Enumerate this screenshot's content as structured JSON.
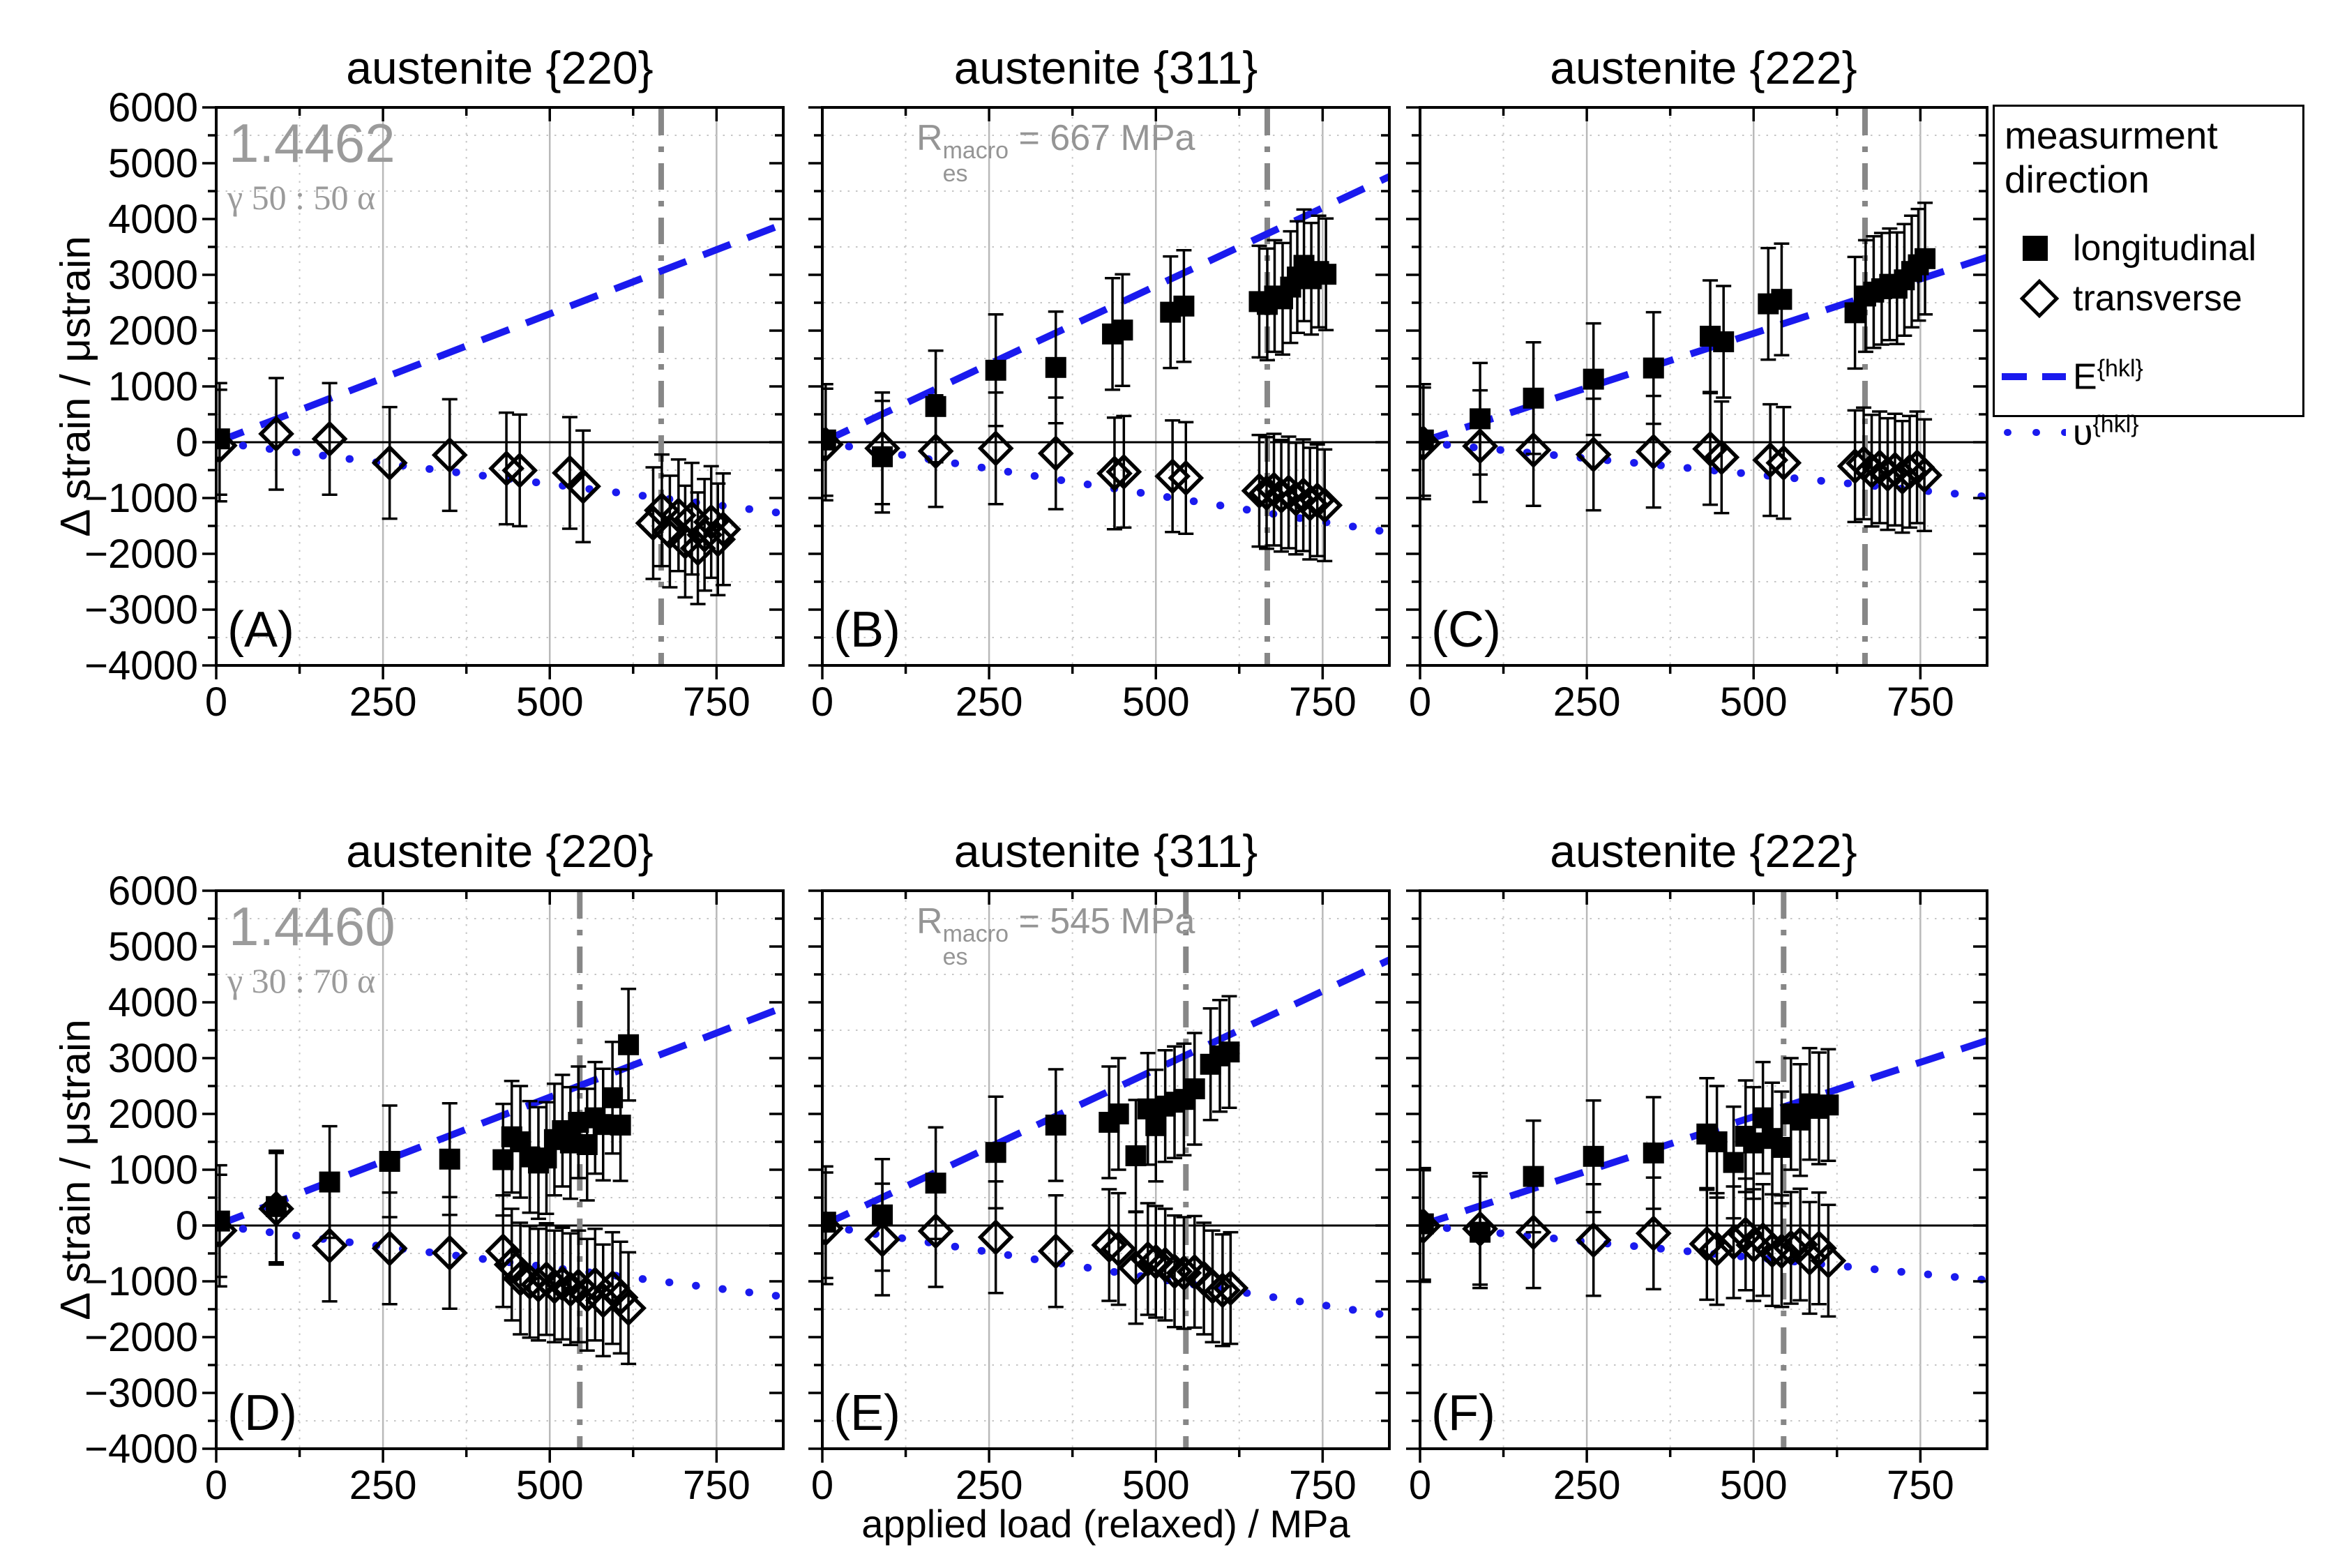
{
  "figure": {
    "x_axis_title": "applied load (relaxed) / MPa",
    "y_axis_title": "Δ strain / μstrain",
    "x_ticks": [
      0,
      250,
      500,
      750
    ],
    "y_ticks": [
      6000,
      5000,
      4000,
      3000,
      2000,
      1000,
      0,
      -1000,
      -2000,
      -3000,
      -4000
    ],
    "x_max": 850,
    "y_min": -4000,
    "y_max": 6000,
    "x_grid_major": [
      250,
      500,
      750
    ],
    "x_grid_minor": [
      125,
      375,
      625
    ],
    "y_grid_minor": [
      5500,
      4500,
      3500,
      2500,
      1500,
      500,
      -500,
      -1500,
      -2500,
      -3500
    ],
    "colors": {
      "line_blue": "#1a1aee",
      "res_line": "#878787",
      "annotation_gray": "#9b9b9b",
      "grid_solid": "#b9b9b9",
      "grid_dot": "#c6c6c6",
      "marker_black": "#000000"
    }
  },
  "legend": {
    "title_line1": "measurment",
    "title_line2": "direction",
    "item_longitudinal": "longitudinal",
    "item_transverse": "transverse",
    "e_label": "E",
    "nu_label": "υ",
    "hkl_sup": "{hkl}"
  },
  "chart_data": [
    {
      "type": "scatter",
      "panel": "(A)",
      "title": "austenite {220}",
      "row": 0,
      "col": 0,
      "material": "1.4462",
      "phase_ratio": "γ 50 : 50 α",
      "res_mpa": 667,
      "E_slope": 4.6,
      "nu_slope": -1.5,
      "longitudinal": [
        [
          5,
          60
        ]
      ],
      "transverse": [
        [
          5,
          -60
        ],
        [
          90,
          150
        ],
        [
          170,
          60
        ],
        [
          260,
          -370
        ],
        [
          350,
          -230
        ],
        [
          435,
          -470
        ],
        [
          455,
          -505
        ],
        [
          530,
          -550
        ],
        [
          550,
          -790
        ],
        [
          655,
          -1450
        ],
        [
          668,
          -1220
        ],
        [
          680,
          -1600
        ],
        [
          693,
          -1310
        ],
        [
          703,
          -1780
        ],
        [
          713,
          -1370
        ],
        [
          722,
          -1900
        ],
        [
          732,
          -1660
        ],
        [
          742,
          -1430
        ],
        [
          752,
          -1740
        ],
        [
          760,
          -1560
        ]
      ]
    },
    {
      "type": "scatter",
      "panel": "(B)",
      "title": "austenite {311}",
      "row": 0,
      "col": 1,
      "res": {
        "pre": "R",
        "sub": "es",
        "sup": "macro",
        "rest": " = 667 MPa"
      },
      "res_mpa": 667,
      "E_slope": 5.6,
      "nu_slope": -1.9,
      "longitudinal": [
        [
          5,
          40
        ],
        [
          90,
          -260
        ],
        [
          170,
          640
        ],
        [
          260,
          1290
        ],
        [
          350,
          1340
        ],
        [
          435,
          1940
        ],
        [
          450,
          2010
        ],
        [
          522,
          2330
        ],
        [
          542,
          2440
        ],
        [
          655,
          2520
        ],
        [
          667,
          2470
        ],
        [
          678,
          2620
        ],
        [
          690,
          2570
        ],
        [
          702,
          2780
        ],
        [
          712,
          2960
        ],
        [
          722,
          3170
        ],
        [
          733,
          2930
        ],
        [
          744,
          3060
        ],
        [
          755,
          3010
        ]
      ],
      "transverse": [
        [
          5,
          -40
        ],
        [
          90,
          -110
        ],
        [
          170,
          -160
        ],
        [
          260,
          -110
        ],
        [
          350,
          -200
        ],
        [
          438,
          -560
        ],
        [
          452,
          -530
        ],
        [
          525,
          -610
        ],
        [
          545,
          -640
        ],
        [
          655,
          -870
        ],
        [
          666,
          -910
        ],
        [
          677,
          -850
        ],
        [
          688,
          -960
        ],
        [
          699,
          -900
        ],
        [
          710,
          -1010
        ],
        [
          721,
          -950
        ],
        [
          731,
          -1100
        ],
        [
          742,
          -1040
        ],
        [
          753,
          -1130
        ]
      ]
    },
    {
      "type": "scatter",
      "panel": "(C)",
      "title": "austenite {222}",
      "row": 0,
      "col": 2,
      "res_mpa": 667,
      "E_slope": 3.9,
      "nu_slope": -1.15,
      "longitudinal": [
        [
          5,
          40
        ],
        [
          90,
          420
        ],
        [
          170,
          790
        ],
        [
          260,
          1130
        ],
        [
          350,
          1330
        ],
        [
          435,
          1900
        ],
        [
          455,
          1800
        ],
        [
          522,
          2480
        ],
        [
          542,
          2560
        ],
        [
          652,
          2320
        ],
        [
          668,
          2620
        ],
        [
          680,
          2690
        ],
        [
          692,
          2750
        ],
        [
          704,
          2830
        ],
        [
          715,
          2760
        ],
        [
          726,
          2910
        ],
        [
          737,
          3060
        ],
        [
          747,
          3180
        ],
        [
          757,
          3290
        ]
      ],
      "transverse": [
        [
          5,
          -20
        ],
        [
          90,
          -70
        ],
        [
          170,
          -140
        ],
        [
          260,
          -220
        ],
        [
          350,
          -170
        ],
        [
          435,
          -120
        ],
        [
          452,
          -270
        ],
        [
          525,
          -320
        ],
        [
          545,
          -370
        ],
        [
          652,
          -430
        ],
        [
          665,
          -380
        ],
        [
          677,
          -510
        ],
        [
          689,
          -450
        ],
        [
          701,
          -570
        ],
        [
          712,
          -490
        ],
        [
          723,
          -620
        ],
        [
          734,
          -530
        ],
        [
          745,
          -450
        ],
        [
          756,
          -590
        ]
      ]
    },
    {
      "type": "scatter",
      "panel": "(D)",
      "title": "austenite {220}",
      "row": 1,
      "col": 0,
      "material": "1.4460",
      "phase_ratio": "γ 30 : 70 α",
      "res_mpa": 545,
      "E_slope": 4.6,
      "nu_slope": -1.5,
      "longitudinal": [
        [
          5,
          80
        ],
        [
          90,
          340
        ],
        [
          170,
          780
        ],
        [
          260,
          1150
        ],
        [
          350,
          1190
        ],
        [
          430,
          1180
        ],
        [
          443,
          1590
        ],
        [
          456,
          1500
        ],
        [
          470,
          1230
        ],
        [
          483,
          1120
        ],
        [
          495,
          1210
        ],
        [
          507,
          1540
        ],
        [
          519,
          1700
        ],
        [
          531,
          1480
        ],
        [
          543,
          1850
        ],
        [
          556,
          1450
        ],
        [
          568,
          1930
        ],
        [
          580,
          1810
        ],
        [
          594,
          2290
        ],
        [
          606,
          1800
        ],
        [
          618,
          3240
        ]
      ],
      "transverse": [
        [
          5,
          -90
        ],
        [
          90,
          300
        ],
        [
          170,
          -360
        ],
        [
          260,
          -410
        ],
        [
          350,
          -490
        ],
        [
          430,
          -460
        ],
        [
          443,
          -700
        ],
        [
          456,
          -950
        ],
        [
          470,
          -1010
        ],
        [
          483,
          -1060
        ],
        [
          495,
          -960
        ],
        [
          507,
          -1090
        ],
        [
          519,
          -1040
        ],
        [
          531,
          -1140
        ],
        [
          543,
          -1090
        ],
        [
          556,
          -1240
        ],
        [
          568,
          -1060
        ],
        [
          580,
          -1340
        ],
        [
          594,
          -1120
        ],
        [
          606,
          -1290
        ],
        [
          618,
          -1480
        ]
      ]
    },
    {
      "type": "scatter",
      "panel": "(E)",
      "title": "austenite {311}",
      "row": 1,
      "col": 1,
      "res": {
        "pre": "R",
        "sub": "es",
        "sup": "macro",
        "rest": " = 545 MPa"
      },
      "res_mpa": 545,
      "E_slope": 5.6,
      "nu_slope": -1.9,
      "longitudinal": [
        [
          5,
          60
        ],
        [
          90,
          190
        ],
        [
          170,
          760
        ],
        [
          260,
          1310
        ],
        [
          350,
          1800
        ],
        [
          430,
          1850
        ],
        [
          444,
          2000
        ],
        [
          470,
          1250
        ],
        [
          488,
          2090
        ],
        [
          500,
          1790
        ],
        [
          514,
          2140
        ],
        [
          528,
          2210
        ],
        [
          542,
          2260
        ],
        [
          558,
          2450
        ],
        [
          582,
          2890
        ],
        [
          596,
          3040
        ],
        [
          610,
          3110
        ]
      ],
      "transverse": [
        [
          5,
          -50
        ],
        [
          90,
          -250
        ],
        [
          170,
          -100
        ],
        [
          260,
          -210
        ],
        [
          350,
          -460
        ],
        [
          430,
          -350
        ],
        [
          444,
          -420
        ],
        [
          470,
          -760
        ],
        [
          488,
          -600
        ],
        [
          500,
          -650
        ],
        [
          514,
          -700
        ],
        [
          528,
          -820
        ],
        [
          542,
          -850
        ],
        [
          558,
          -830
        ],
        [
          572,
          -950
        ],
        [
          585,
          -1090
        ],
        [
          600,
          -1160
        ],
        [
          612,
          -1120
        ]
      ]
    },
    {
      "type": "scatter",
      "panel": "(F)",
      "title": "austenite {222}",
      "row": 1,
      "col": 2,
      "res_mpa": 545,
      "E_slope": 3.9,
      "nu_slope": -1.15,
      "longitudinal": [
        [
          5,
          30
        ],
        [
          90,
          -120
        ],
        [
          170,
          880
        ],
        [
          260,
          1240
        ],
        [
          350,
          1300
        ],
        [
          430,
          1640
        ],
        [
          445,
          1500
        ],
        [
          470,
          1130
        ],
        [
          488,
          1600
        ],
        [
          500,
          1480
        ],
        [
          514,
          1930
        ],
        [
          528,
          1560
        ],
        [
          542,
          1400
        ],
        [
          556,
          2000
        ],
        [
          570,
          1890
        ],
        [
          584,
          2180
        ],
        [
          598,
          2100
        ],
        [
          612,
          2160
        ]
      ],
      "transverse": [
        [
          5,
          -10
        ],
        [
          90,
          -60
        ],
        [
          170,
          -120
        ],
        [
          260,
          -260
        ],
        [
          350,
          -140
        ],
        [
          430,
          -330
        ],
        [
          445,
          -420
        ],
        [
          470,
          -300
        ],
        [
          488,
          -160
        ],
        [
          500,
          -350
        ],
        [
          514,
          -260
        ],
        [
          528,
          -440
        ],
        [
          542,
          -460
        ],
        [
          556,
          -400
        ],
        [
          570,
          -340
        ],
        [
          584,
          -580
        ],
        [
          598,
          -410
        ],
        [
          612,
          -630
        ]
      ]
    }
  ]
}
